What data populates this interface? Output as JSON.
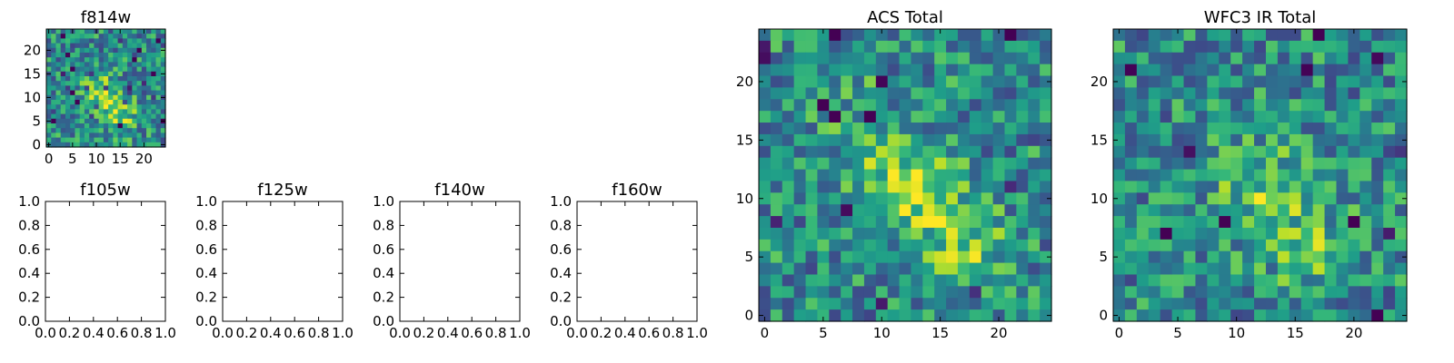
{
  "chart_data": [
    {
      "id": "f814w",
      "type": "heatmap",
      "title": "f814w",
      "grid_size": 25,
      "colormap": "viridis",
      "seed": 814,
      "x_ticks": [
        0,
        5,
        10,
        15,
        20
      ],
      "y_ticks": [
        0,
        5,
        10,
        15,
        20
      ],
      "peaks": [
        {
          "x": 11,
          "y": 11,
          "amp": 0.4
        },
        {
          "x": 15,
          "y": 6,
          "amp": 0.3
        }
      ]
    },
    {
      "id": "f105w",
      "type": "empty",
      "title": "f105w",
      "xlim": [
        0,
        1
      ],
      "ylim": [
        0,
        1
      ],
      "x_ticks": [
        "0.0",
        "0.2",
        "0.4",
        "0.6",
        "0.8",
        "1.0"
      ],
      "y_ticks": [
        "0.0",
        "0.2",
        "0.4",
        "0.6",
        "0.8",
        "1.0"
      ]
    },
    {
      "id": "f125w",
      "type": "empty",
      "title": "f125w",
      "xlim": [
        0,
        1
      ],
      "ylim": [
        0,
        1
      ],
      "x_ticks": [
        "0.0",
        "0.2",
        "0.4",
        "0.6",
        "0.8",
        "1.0"
      ],
      "y_ticks": [
        "0.0",
        "0.2",
        "0.4",
        "0.6",
        "0.8",
        "1.0"
      ]
    },
    {
      "id": "f140w",
      "type": "empty",
      "title": "f140w",
      "xlim": [
        0,
        1
      ],
      "ylim": [
        0,
        1
      ],
      "x_ticks": [
        "0.0",
        "0.2",
        "0.4",
        "0.6",
        "0.8",
        "1.0"
      ],
      "y_ticks": [
        "0.0",
        "0.2",
        "0.4",
        "0.6",
        "0.8",
        "1.0"
      ]
    },
    {
      "id": "f160w",
      "type": "empty",
      "title": "f160w",
      "xlim": [
        0,
        1
      ],
      "ylim": [
        0,
        1
      ],
      "x_ticks": [
        "0.0",
        "0.2",
        "0.4",
        "0.6",
        "0.8",
        "1.0"
      ],
      "y_ticks": [
        "0.0",
        "0.2",
        "0.4",
        "0.6",
        "0.8",
        "1.0"
      ]
    },
    {
      "id": "acs-total",
      "type": "heatmap",
      "title": "ACS Total",
      "grid_size": 25,
      "colormap": "viridis",
      "seed": 101,
      "x_ticks": [
        0,
        5,
        10,
        15,
        20
      ],
      "y_ticks": [
        0,
        5,
        10,
        15,
        20
      ],
      "peaks": [
        {
          "x": 12,
          "y": 11,
          "amp": 0.4
        },
        {
          "x": 17,
          "y": 6,
          "amp": 0.32
        },
        {
          "x": 8,
          "y": 17,
          "amp": 0.12
        }
      ]
    },
    {
      "id": "wfc3-ir-total",
      "type": "heatmap",
      "title": "WFC3 IR Total",
      "grid_size": 25,
      "colormap": "viridis",
      "seed": 202,
      "x_ticks": [
        0,
        5,
        10,
        15,
        20
      ],
      "y_ticks": [
        0,
        5,
        10,
        15,
        20
      ],
      "peaks": [
        {
          "x": 12,
          "y": 11,
          "amp": 0.25
        },
        {
          "x": 16,
          "y": 6,
          "amp": 0.22
        }
      ]
    }
  ]
}
